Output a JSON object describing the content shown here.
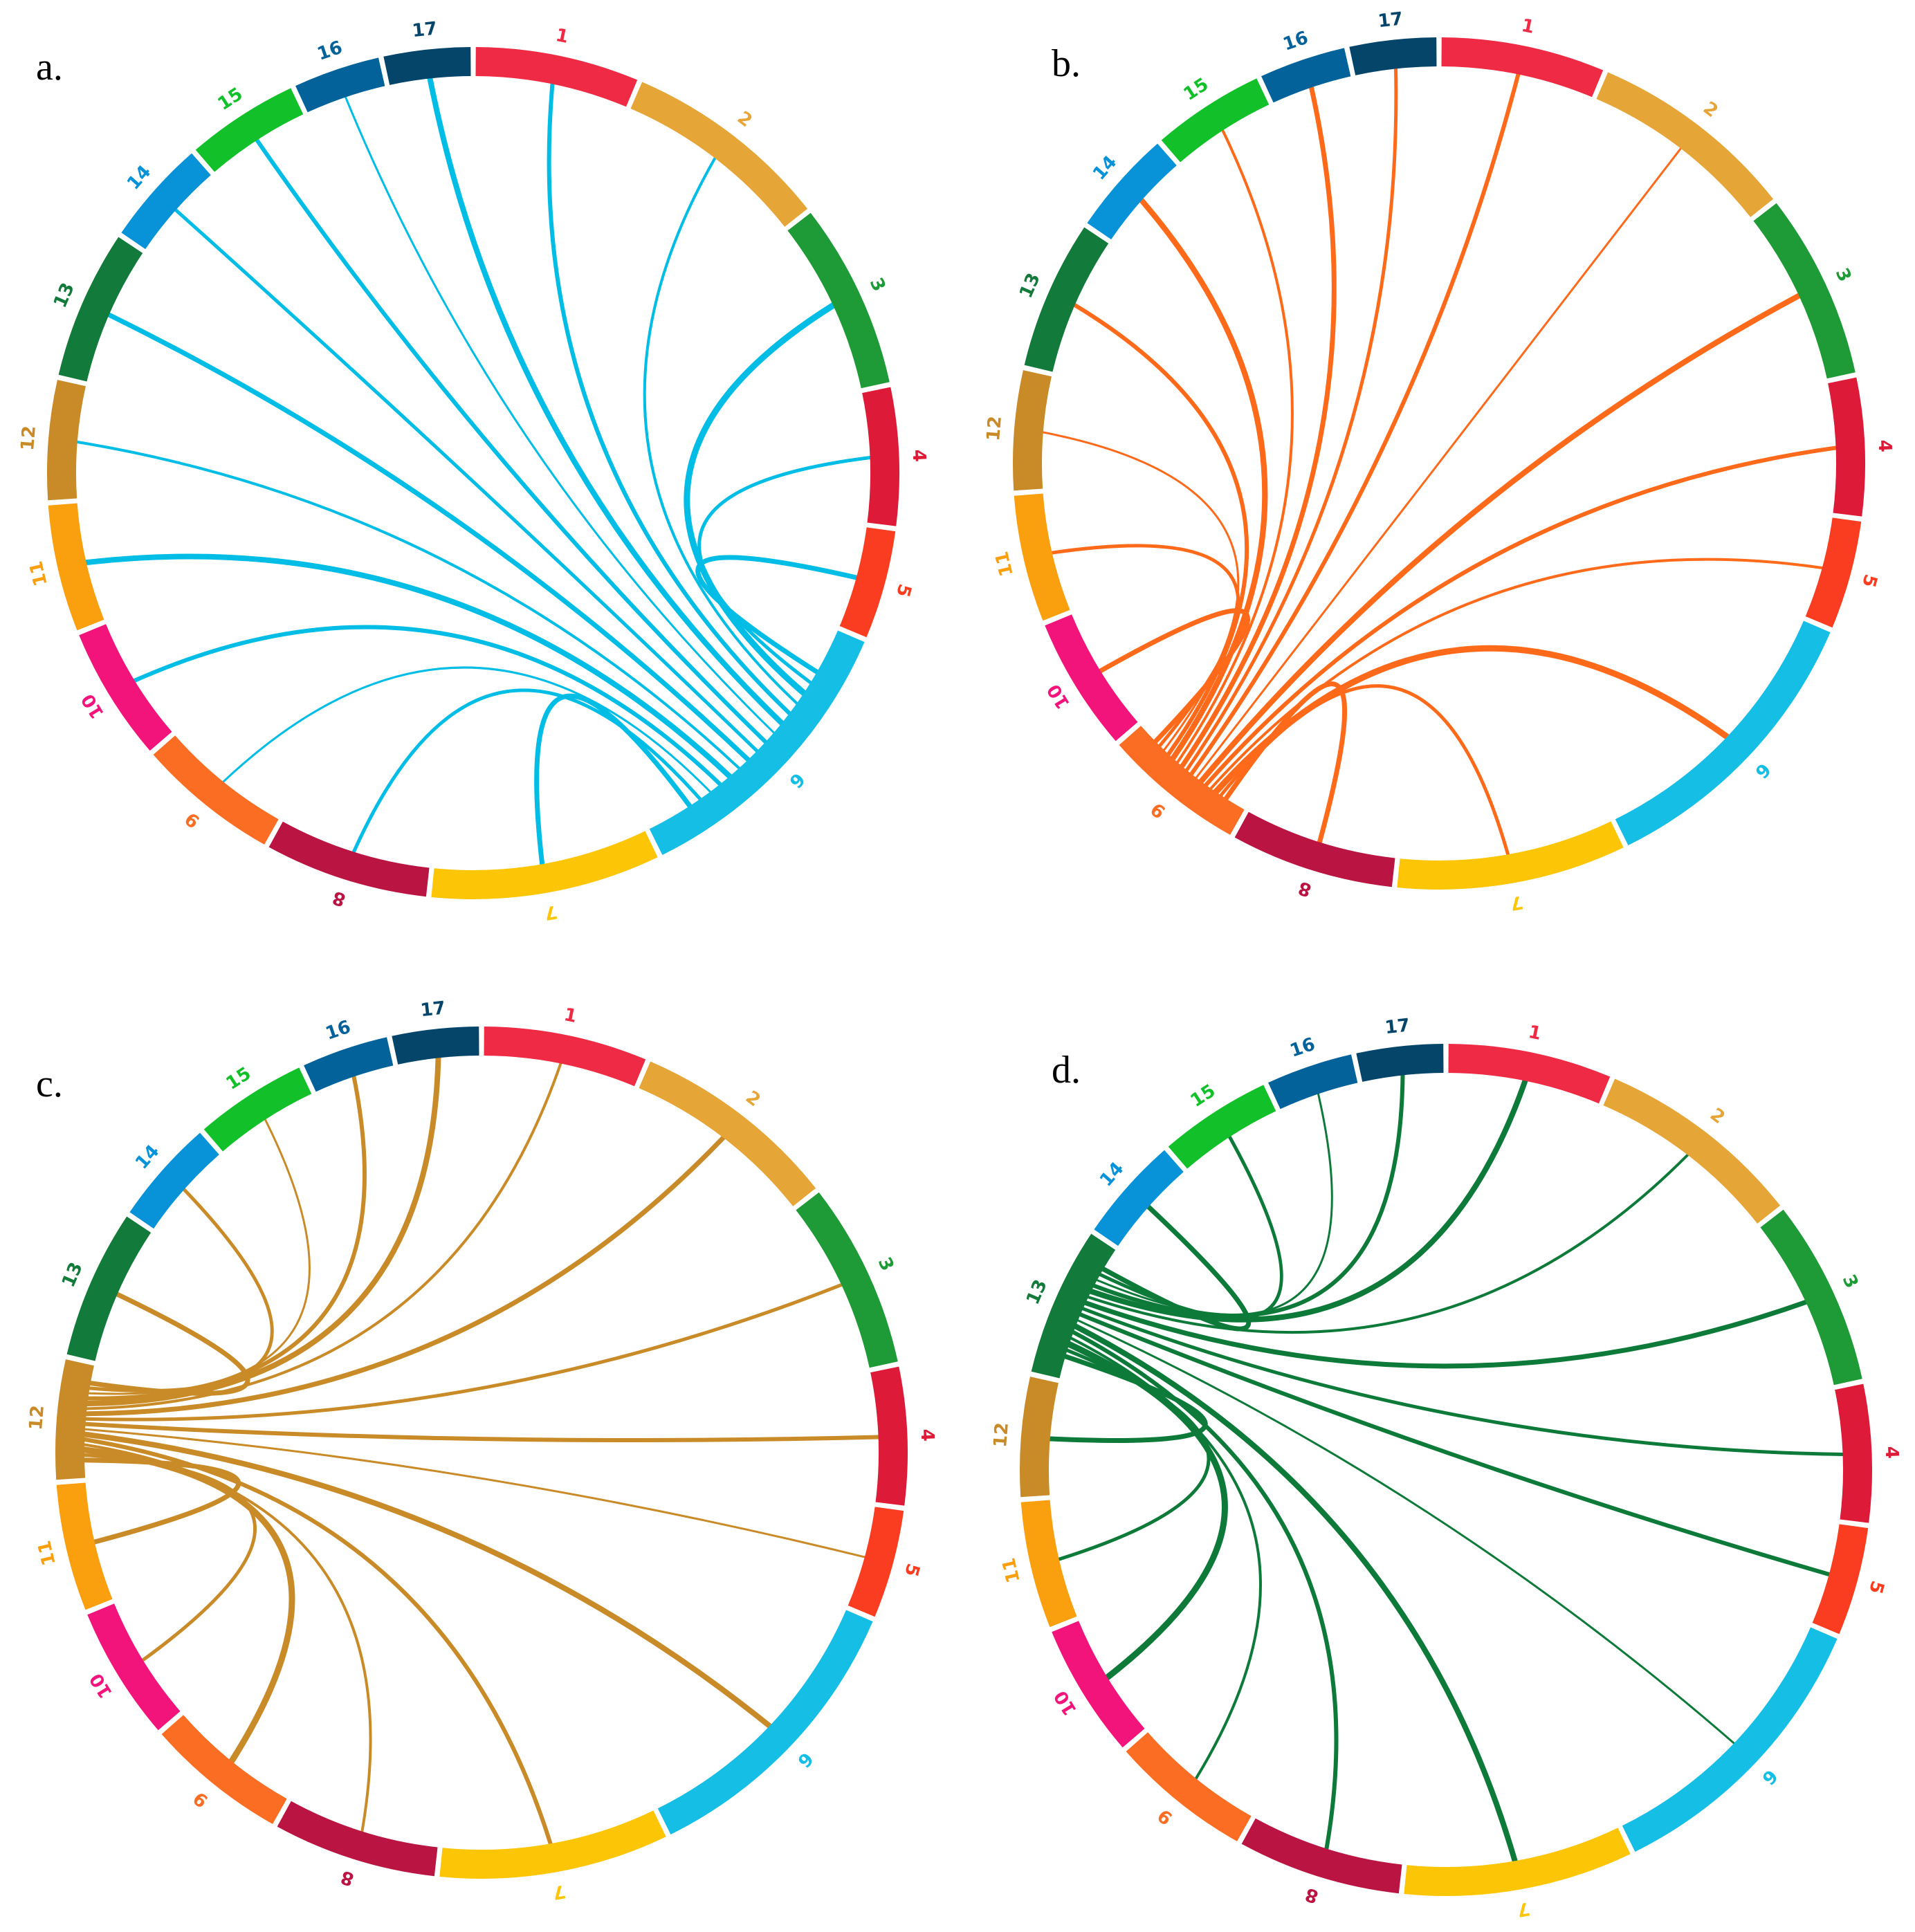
{
  "segments": [
    {
      "label": "1",
      "color": "#ee2a44",
      "size": 23
    },
    {
      "label": "2",
      "color": "#e6a537",
      "size": 29
    },
    {
      "label": "3",
      "color": "#1e9a36",
      "size": 26
    },
    {
      "label": "4",
      "color": "#dd1a37",
      "size": 19.5
    },
    {
      "label": "5",
      "color": "#fa3d20",
      "size": 15.5
    },
    {
      "label": "6",
      "color": "#14bee5",
      "size": 41
    },
    {
      "label": "7",
      "color": "#fcc505",
      "size": 32
    },
    {
      "label": "8",
      "color": "#ba1542",
      "size": 23
    },
    {
      "label": "9",
      "color": "#fb6d22",
      "size": 20
    },
    {
      "label": "10",
      "color": "#f2147a",
      "size": 19
    },
    {
      "label": "11",
      "color": "#fa9f0e",
      "size": 18
    },
    {
      "label": "12",
      "color": "#c98a28",
      "size": 17
    },
    {
      "label": "13",
      "color": "#127a3a",
      "size": 21
    },
    {
      "label": "14",
      "color": "#0892d8",
      "size": 15
    },
    {
      "label": "15",
      "color": "#12c12a",
      "size": 16
    },
    {
      "label": "16",
      "color": "#03629a",
      "size": 12.5
    },
    {
      "label": "17",
      "color": "#05456a",
      "size": 12.5
    }
  ],
  "panels": [
    {
      "label": "a.",
      "hub": 5,
      "color": "#00bde6"
    },
    {
      "label": "b.",
      "hub": 8,
      "color": "#ff6a1a"
    },
    {
      "label": "c.",
      "hub": 11,
      "color": "#c98a28"
    },
    {
      "label": "d.",
      "hub": 12,
      "color": "#0d7a3a"
    }
  ]
}
